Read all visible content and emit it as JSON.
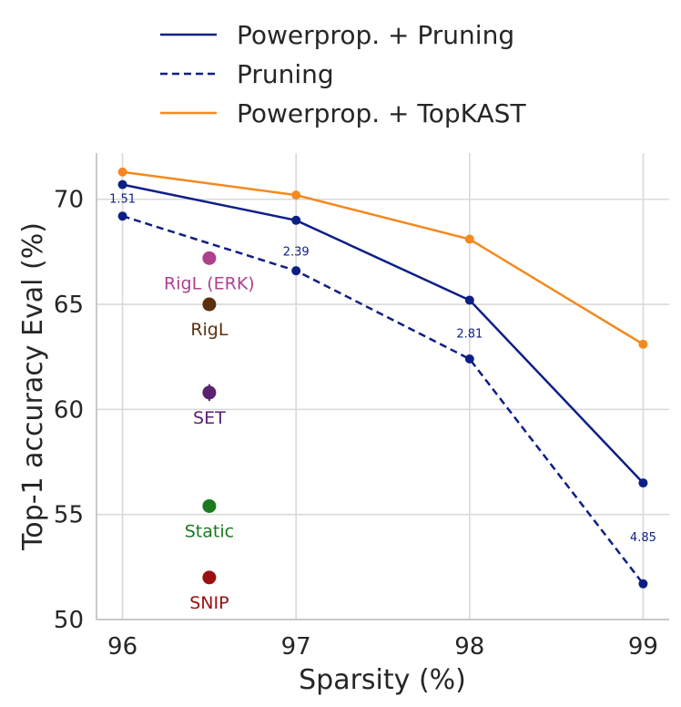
{
  "chart_data": {
    "type": "line",
    "title": "",
    "xlabel": "Sparsity (%)",
    "ylabel": "Top-1 accuracy Eval (%)",
    "xlim": [
      95.85,
      99.15
    ],
    "ylim": [
      50,
      72.2
    ],
    "xticks": [
      96,
      97,
      98,
      99
    ],
    "yticks": [
      50,
      55,
      60,
      65,
      70
    ],
    "grid": true,
    "legend_position": "top-center",
    "series": [
      {
        "name": "Powerprop. + Pruning",
        "style": "solid",
        "color": "#0d1f87",
        "x": [
          96,
          97,
          98,
          99
        ],
        "values": [
          70.7,
          69.0,
          65.2,
          56.5
        ]
      },
      {
        "name": "Pruning",
        "style": "dashed",
        "color": "#0d1f87",
        "x": [
          96,
          97,
          98,
          99
        ],
        "values": [
          69.2,
          66.6,
          62.4,
          51.7
        ]
      },
      {
        "name": "Powerprop. + TopKAST",
        "style": "solid",
        "color": "#f5891e",
        "x": [
          96,
          97,
          98,
          99
        ],
        "values": [
          71.3,
          70.2,
          68.1,
          63.1
        ]
      }
    ],
    "annotations": [
      {
        "text": "1.51",
        "x": 96,
        "y": 70.0
      },
      {
        "text": "2.39",
        "x": 97,
        "y": 67.5
      },
      {
        "text": "2.81",
        "x": 98,
        "y": 63.6
      },
      {
        "text": "4.85",
        "x": 99,
        "y": 53.9
      }
    ],
    "baselines": [
      {
        "name": "RigL (ERK)",
        "x": 96.5,
        "y": 67.2,
        "color": "#b0408e"
      },
      {
        "name": "RigL",
        "x": 96.5,
        "y": 65.0,
        "color": "#5a300e"
      },
      {
        "name": "SET",
        "x": 96.5,
        "y": 60.8,
        "color": "#5b2172",
        "error": 0.4
      },
      {
        "name": "Static",
        "x": 96.5,
        "y": 55.4,
        "color": "#1b7a1e"
      },
      {
        "name": "SNIP",
        "x": 96.5,
        "y": 52.0,
        "color": "#9b0f0f"
      }
    ]
  }
}
